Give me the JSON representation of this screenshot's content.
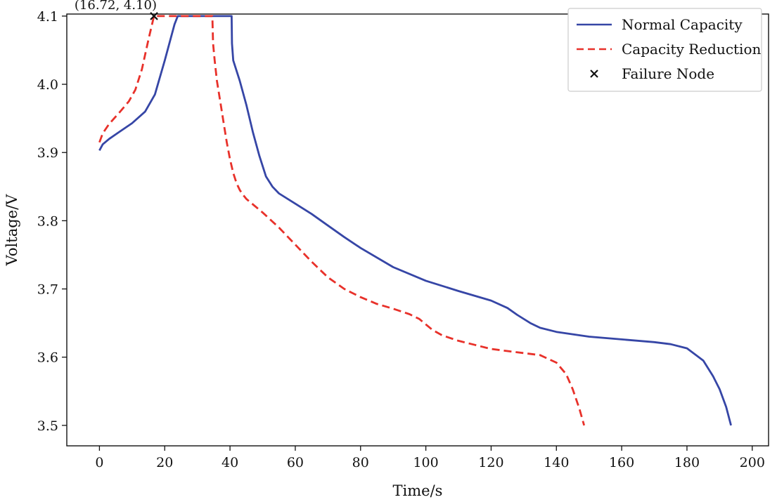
{
  "chart_data": {
    "type": "line",
    "title": "",
    "xlabel": "Time/s",
    "ylabel": "Voltage/V",
    "xlim": [
      -10,
      205
    ],
    "ylim": [
      3.47,
      4.103
    ],
    "xticks": [
      0,
      20,
      40,
      60,
      80,
      100,
      120,
      140,
      160,
      180,
      200
    ],
    "xtick_labels": [
      "0",
      "20",
      "40",
      "60",
      "80",
      "100",
      "120",
      "140",
      "160",
      "180",
      "200"
    ],
    "yticks": [
      3.5,
      3.6,
      3.7,
      3.8,
      3.9,
      4.0,
      4.1
    ],
    "ytick_labels": [
      "3.5",
      "3.6",
      "3.7",
      "3.8",
      "3.9",
      "4.0",
      "4.1"
    ],
    "grid": false,
    "legend_position": "top-right",
    "series": [
      {
        "name": "Normal Capacity",
        "color": "#3646a6",
        "style": "solid",
        "x": [
          0,
          1,
          3,
          6,
          10,
          14,
          17,
          20,
          23,
          24,
          30,
          35,
          40.5,
          40.6,
          41,
          43,
          45,
          47,
          49,
          51,
          53,
          55,
          60,
          65,
          70,
          75,
          80,
          90,
          100,
          110,
          120,
          125,
          128,
          132,
          135,
          140,
          150,
          160,
          170,
          175,
          180,
          185,
          188,
          190,
          192,
          193.5
        ],
        "y": [
          3.903,
          3.912,
          3.92,
          3.93,
          3.943,
          3.96,
          3.985,
          4.035,
          4.088,
          4.1,
          4.1,
          4.1,
          4.1,
          4.06,
          4.035,
          4.005,
          3.97,
          3.93,
          3.895,
          3.865,
          3.85,
          3.84,
          3.825,
          3.81,
          3.793,
          3.776,
          3.76,
          3.732,
          3.712,
          3.697,
          3.683,
          3.672,
          3.662,
          3.65,
          3.643,
          3.637,
          3.63,
          3.626,
          3.622,
          3.619,
          3.613,
          3.595,
          3.572,
          3.553,
          3.527,
          3.5
        ],
        "legend_label": "Normal Capacity"
      },
      {
        "name": "Capacity Reduction",
        "color": "#e8312a",
        "style": "dashed",
        "x": [
          0,
          1,
          3,
          6,
          9,
          11,
          13,
          15,
          16.72,
          20,
          25,
          30,
          34.6,
          34.8,
          35.3,
          36,
          37,
          38,
          39,
          40,
          41,
          42,
          43,
          44,
          45,
          50,
          55,
          60,
          65,
          70,
          75,
          80,
          85,
          90,
          95,
          98,
          100,
          102,
          105,
          110,
          115,
          120,
          125,
          130,
          135,
          140,
          143,
          145,
          147,
          148.5
        ],
        "y": [
          3.915,
          3.928,
          3.942,
          3.958,
          3.975,
          3.992,
          4.022,
          4.065,
          4.1,
          4.1,
          4.1,
          4.1,
          4.1,
          4.06,
          4.035,
          4.005,
          3.975,
          3.945,
          3.915,
          3.89,
          3.87,
          3.855,
          3.845,
          3.838,
          3.832,
          3.812,
          3.79,
          3.765,
          3.74,
          3.717,
          3.7,
          3.688,
          3.678,
          3.671,
          3.663,
          3.656,
          3.648,
          3.64,
          3.632,
          3.624,
          3.618,
          3.612,
          3.609,
          3.606,
          3.603,
          3.592,
          3.575,
          3.553,
          3.525,
          3.5
        ],
        "legend_label": "Capacity Reduction"
      }
    ],
    "markers": [
      {
        "name": "Failure Node",
        "legend_label": "Failure Node",
        "symbol": "x",
        "color": "#111111",
        "x": 16.72,
        "y": 4.1,
        "annotation": "(16.72, 4.10)"
      }
    ]
  }
}
